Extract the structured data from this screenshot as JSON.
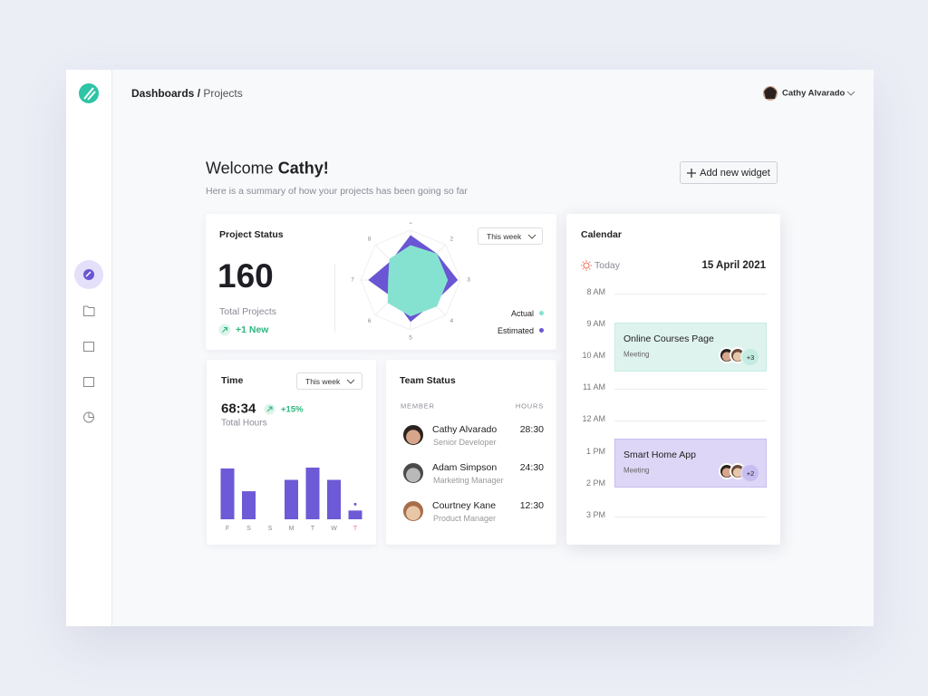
{
  "header": {
    "breadcrumb_root": "Dashboards",
    "breadcrumb_separator": "/",
    "breadcrumb_current": "Projects",
    "user_name": "Cathy Alvarado"
  },
  "welcome": {
    "greeting": "Welcome",
    "name": "Cathy!",
    "subtitle": "Here is a summary of how your projects has been going so far",
    "button": "Add new widget"
  },
  "project_status": {
    "title": "Project Status",
    "total": 160,
    "total_label": "Total Projects",
    "new": "+1 New",
    "period": "This week"
  },
  "time": {
    "title": "Time",
    "period": "This week",
    "total": "68:34",
    "change": "+15%",
    "total_label": "Total Hours"
  },
  "team": {
    "title": "Team Status",
    "columns": [
      "MEMBER",
      "HOURS"
    ],
    "members": [
      {
        "name": "Cathy Alvarado",
        "role": "Senior Developer",
        "hours": "28:30"
      },
      {
        "name": "Adam Simpson",
        "role": "Marketing Manager",
        "hours": "24:30"
      },
      {
        "name": "Courtney Kane",
        "role": "Product Manager",
        "hours": "12:30"
      }
    ]
  },
  "calendar": {
    "title": "Calendar",
    "today_label": "Today",
    "date": "15 April 2021",
    "hours": [
      "8 AM",
      "9 AM",
      "10 AM",
      "11 AM",
      "12 AM",
      "1 PM",
      "2 PM",
      "3 PM"
    ],
    "events": [
      {
        "title": "Online Courses Page",
        "type": "Meeting",
        "extra": "+3"
      },
      {
        "title": "Smart Home App",
        "type": "Meeting",
        "extra": "+2"
      }
    ]
  },
  "chart_data": [
    {
      "type": "radar",
      "categories": [
        "1",
        "2",
        "3",
        "4",
        "5",
        "6",
        "7",
        "8"
      ],
      "rlim": [
        0,
        10
      ],
      "series": [
        {
          "name": "Actual",
          "color": "#86e2d0",
          "values": [
            7,
            7.5,
            7.5,
            7.5,
            7.3,
            6.5,
            4.5,
            6
          ]
        },
        {
          "name": "Estimated",
          "color": "#6a55d3",
          "values": [
            9,
            7.5,
            9.5,
            6.5,
            8.4,
            5,
            8.5,
            5.5
          ]
        }
      ]
    },
    {
      "type": "bar",
      "categories": [
        "F",
        "S",
        "S",
        "M",
        "T",
        "W",
        "T"
      ],
      "values": [
        58,
        32,
        0,
        45,
        59,
        45,
        10
      ],
      "ylim": [
        0,
        60
      ],
      "color": "#6c5ad6",
      "highlight_index": 6,
      "highlight_color": "#f07080"
    }
  ]
}
